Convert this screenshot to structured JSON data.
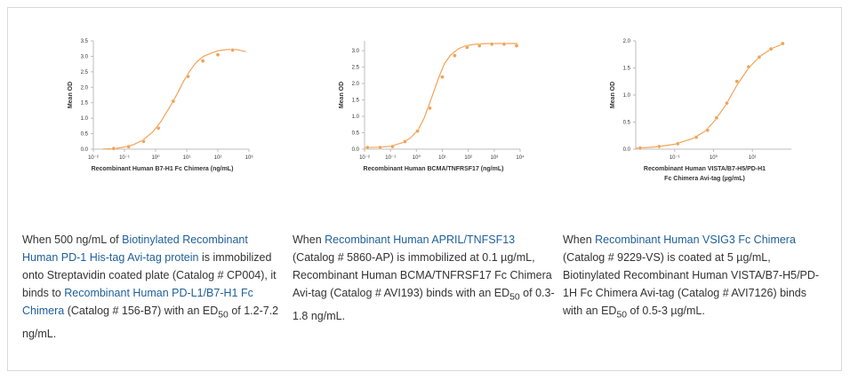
{
  "colors": {
    "curve": "#f0a358",
    "text": "#333333",
    "link": "#1f5f99",
    "border": "#d9d9d9",
    "axis": "#bdbdbd"
  },
  "chart_data": [
    {
      "type": "line",
      "xscale": "log",
      "ylabel": "Mean OD",
      "xlabel_lines": [
        "Recombinant Human B7-H1 Fc Chimera (ng/mL)"
      ],
      "xlim": [
        0.01,
        1000
      ],
      "ylim": [
        0,
        3.5
      ],
      "x_ticks": [
        0.01,
        0.1,
        1,
        10,
        100,
        1000
      ],
      "x_tick_labels": [
        "10⁻²",
        "10⁻¹",
        "10⁰",
        "10¹",
        "10²",
        "10³"
      ],
      "y_ticks": [
        0,
        0.5,
        1,
        1.5,
        2,
        2.5,
        3,
        3.5
      ],
      "y_tick_labels": [
        "0.0",
        "0.5",
        "1.0",
        "1.5",
        "2.0",
        "2.5",
        "3.0",
        "3.5"
      ],
      "series": [
        {
          "x": [
            0.045,
            0.135,
            0.41,
            1.23,
            3.7,
            11,
            33,
            100,
            300
          ],
          "y": [
            0.02,
            0.08,
            0.25,
            0.68,
            1.55,
            2.35,
            2.85,
            3.05,
            3.2
          ],
          "curve_x": [
            0.02,
            0.05,
            0.1,
            0.2,
            0.4,
            0.8,
            1.5,
            3,
            5,
            8,
            12,
            20,
            35,
            60,
            100,
            200,
            400,
            800
          ],
          "curve_y": [
            0.0,
            0.02,
            0.07,
            0.15,
            0.3,
            0.55,
            0.9,
            1.4,
            1.8,
            2.2,
            2.5,
            2.8,
            3.0,
            3.1,
            3.18,
            3.22,
            3.22,
            3.15
          ]
        }
      ]
    },
    {
      "type": "line",
      "xscale": "log",
      "ylabel": "Mean OD",
      "xlabel_lines": [
        "Recombinant Human BCMA/TNFRSF17 (ng/mL)"
      ],
      "xlim": [
        0.01,
        10000
      ],
      "ylim": [
        0,
        3.3
      ],
      "x_ticks": [
        0.01,
        0.1,
        1,
        10,
        100,
        1000,
        10000
      ],
      "x_tick_labels": [
        "10⁻²",
        "10⁻¹",
        "10⁰",
        "10¹",
        "10²",
        "10³",
        "10⁴"
      ],
      "y_ticks": [
        0,
        0.5,
        1,
        1.5,
        2,
        2.5,
        3
      ],
      "y_tick_labels": [
        "0.0",
        "0.5",
        "1.0",
        "1.5",
        "2.0",
        "2.5",
        "3.0"
      ],
      "series": [
        {
          "x": [
            0.013,
            0.04,
            0.12,
            0.36,
            1.1,
            3.3,
            10,
            30,
            90,
            270,
            810,
            2400,
            7300
          ],
          "y": [
            0.05,
            0.05,
            0.08,
            0.23,
            0.55,
            1.25,
            2.2,
            2.85,
            3.1,
            3.15,
            3.2,
            3.2,
            3.15
          ],
          "curve_x": [
            0.01,
            0.04,
            0.1,
            0.3,
            0.6,
            1.2,
            2,
            4,
            7,
            12,
            20,
            40,
            80,
            200,
            600,
            2000,
            8000
          ],
          "curve_y": [
            0.05,
            0.06,
            0.09,
            0.2,
            0.35,
            0.6,
            0.95,
            1.6,
            2.15,
            2.6,
            2.85,
            3.05,
            3.15,
            3.2,
            3.22,
            3.22,
            3.22
          ]
        }
      ]
    },
    {
      "type": "line",
      "xscale": "log",
      "ylabel": "Mean OD",
      "xlabel_lines": [
        "Recombinant Human VISTA/B7-H5/PD-H1",
        "Fc Chimera Avi-tag (µg/mL)"
      ],
      "xlim": [
        0.01,
        100
      ],
      "ylim": [
        0,
        2
      ],
      "x_ticks": [
        0.1,
        1,
        10
      ],
      "x_tick_labels": [
        "10⁻¹",
        "10⁰",
        "10¹"
      ],
      "y_ticks": [
        0,
        0.5,
        1,
        1.5,
        2
      ],
      "y_tick_labels": [
        "0.0",
        "0.5",
        "1.0",
        "1.5",
        "2.0"
      ],
      "series": [
        {
          "x": [
            0.013,
            0.04,
            0.12,
            0.36,
            0.7,
            1.2,
            2.2,
            4,
            8,
            15,
            30,
            60
          ],
          "y": [
            0.02,
            0.05,
            0.1,
            0.22,
            0.35,
            0.58,
            0.85,
            1.25,
            1.52,
            1.7,
            1.85,
            1.95
          ],
          "curve_x": [
            0.01,
            0.03,
            0.1,
            0.3,
            0.6,
            1,
            2,
            4,
            8,
            16,
            32,
            64
          ],
          "curve_y": [
            0.02,
            0.04,
            0.09,
            0.2,
            0.33,
            0.5,
            0.8,
            1.18,
            1.5,
            1.72,
            1.86,
            1.95
          ]
        }
      ]
    }
  ],
  "captions": [
    {
      "parts": [
        {
          "text": "When 500 ng/mL of ",
          "link": false
        },
        {
          "text": "Biotinylated Recombinant Human PD-1 His-tag Avi-tag protein",
          "link": true
        },
        {
          "text": " is immobilized onto Streptavidin coated plate (Catalog # CP004), it binds to ",
          "link": false
        },
        {
          "text": "Recombinant Human PD-L1/B7-H1 Fc Chimera",
          "link": true
        },
        {
          "text": " (Catalog # 156-B7) with an ED",
          "link": false
        },
        {
          "text": "50",
          "sub": true
        },
        {
          "text": " of 1.2-7.2 ng/mL.",
          "link": false
        }
      ]
    },
    {
      "parts": [
        {
          "text": "When ",
          "link": false
        },
        {
          "text": "Recombinant Human APRIL/TNFSF13",
          "link": true
        },
        {
          "text": " (Catalog # 5860-AP) is immobilized at 0.1 µg/mL, Recombinant Human BCMA/TNFRSF17 Fc Chimera Avi-tag (Catalog # AVI193) binds with an ED",
          "link": false
        },
        {
          "text": "50",
          "sub": true
        },
        {
          "text": " of 0.3-1.8 ng/mL.",
          "link": false
        }
      ]
    },
    {
      "parts": [
        {
          "text": "When ",
          "link": false
        },
        {
          "text": "Recombinant Human VSIG3 Fc Chimera",
          "link": true
        },
        {
          "text": " (Catalog # 9229-VS) is coated at 5 µg/mL, Biotinylated Recombinant Human VISTA/B7-H5/PD-1H Fc Chimera Avi-tag (Catalog # AVI7126) binds with an ED",
          "link": false
        },
        {
          "text": "50",
          "sub": true
        },
        {
          "text": " of 0.5-3 µg/mL.",
          "link": false
        }
      ]
    }
  ]
}
